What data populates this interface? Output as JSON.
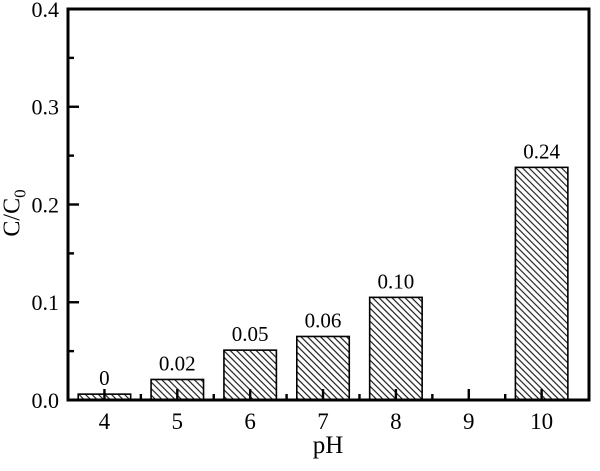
{
  "chart_data": {
    "type": "bar",
    "title": "",
    "xlabel": "pH",
    "ylabel": "C/C0",
    "ylabel_main": "C/C",
    "ylabel_sub": "0",
    "categories": [
      "4",
      "5",
      "6",
      "7",
      "8",
      "9",
      "10"
    ],
    "x_positions": [
      4,
      5,
      6,
      7,
      8,
      9,
      10
    ],
    "values": [
      0,
      0.02,
      0.05,
      0.06,
      0.1,
      null,
      0.24
    ],
    "bar_labels": [
      "0",
      "0.02",
      "0.05",
      "0.06",
      "0.10",
      null,
      "0.24"
    ],
    "drawn_heights": [
      0.006,
      0.021,
      0.051,
      0.065,
      0.105,
      null,
      0.238
    ],
    "bar_width_units": 0.72,
    "xlim": [
      3.5,
      10.65
    ],
    "ylim": [
      0,
      0.4
    ],
    "y_major_ticks": [
      0,
      0.1,
      0.2,
      0.3,
      0.4
    ],
    "y_tick_labels": [
      "0.0",
      "0.1",
      "0.2",
      "0.3",
      "0.4"
    ],
    "y_minor_ticks": [
      0.05,
      0.15,
      0.25,
      0.35
    ],
    "x_minor_ticks": [
      4.5,
      5.5,
      6.5,
      7.5,
      8.5,
      9.5
    ],
    "grid": false,
    "legend": null,
    "bar_style": {
      "fill": "#ffffff",
      "hatch": "diagonal-down",
      "hatch_color": "#161616",
      "edge_color": "#000000"
    },
    "axis_color": "#000000",
    "background": "#ffffff"
  }
}
